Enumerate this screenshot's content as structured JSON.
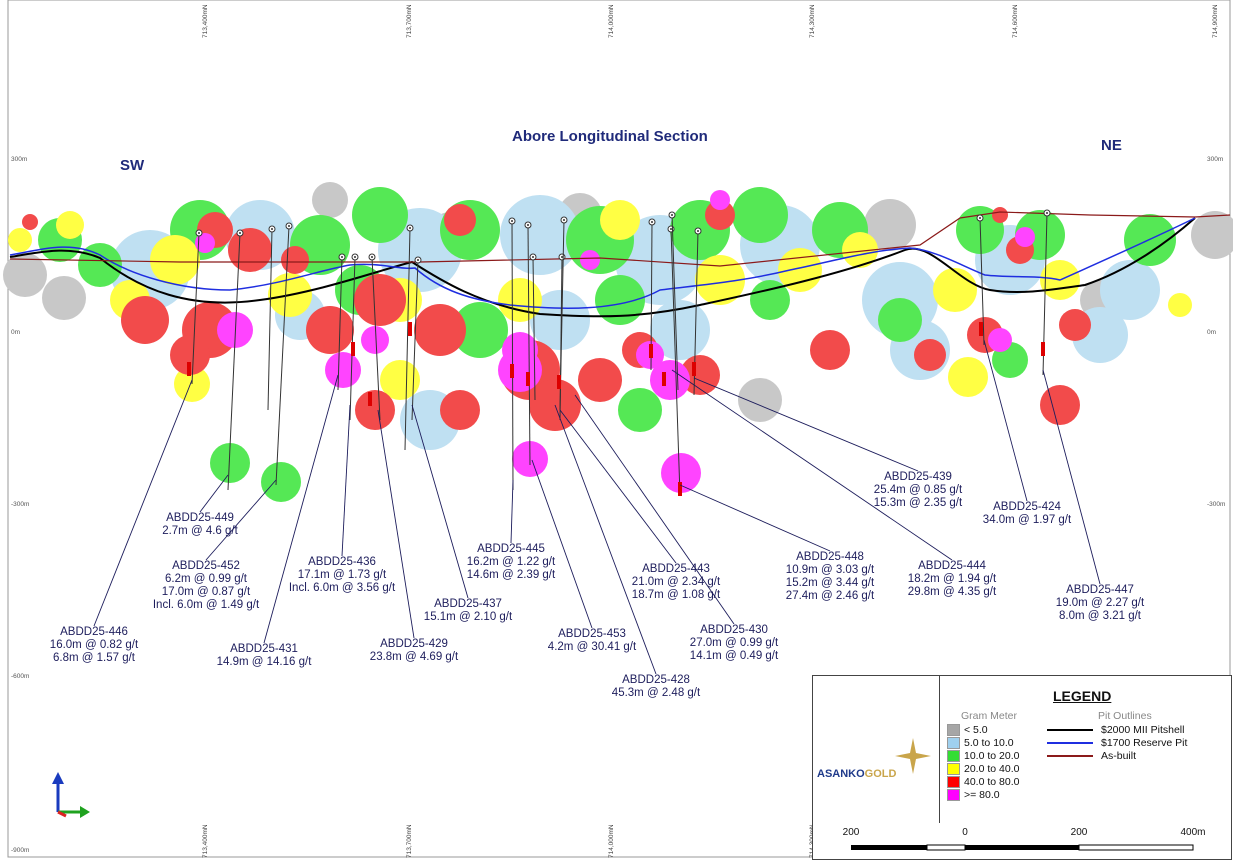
{
  "title": "Abore Longitudinal Section",
  "direction_labels": {
    "left": "SW",
    "right": "NE"
  },
  "easting_ticks": [
    "713,400mN",
    "713,700mN",
    "714,000mN",
    "714,300mN",
    "714,600mN",
    "714,900mN"
  ],
  "elevation_ticks": [
    "300m",
    "0m",
    "-300m",
    "-600m",
    "-900m"
  ],
  "drill_holes": [
    {
      "hole": "ABDD25-446",
      "lines": [
        "16.0m @ 0.82 g/t",
        "6.8m @ 1.57 g/t"
      ]
    },
    {
      "hole": "ABDD25-449",
      "lines": [
        "2.7m @ 4.6 g/t"
      ]
    },
    {
      "hole": "ABDD25-452",
      "lines": [
        "6.2m @ 0.99 g/t",
        "17.0m @ 0.87 g/t",
        "Incl. 6.0m @ 1.49 g/t"
      ]
    },
    {
      "hole": "ABDD25-431",
      "lines": [
        "14.9m @ 14.16 g/t"
      ]
    },
    {
      "hole": "ABDD25-436",
      "lines": [
        "17.1m @ 1.73 g/t",
        "Incl. 6.0m @ 3.56 g/t"
      ]
    },
    {
      "hole": "ABDD25-429",
      "lines": [
        "23.8m @ 4.69 g/t"
      ]
    },
    {
      "hole": "ABDD25-437",
      "lines": [
        "15.1m @ 2.10 g/t"
      ]
    },
    {
      "hole": "ABDD25-445",
      "lines": [
        "16.2m @ 1.22 g/t",
        "14.6m @ 2.39 g/t"
      ]
    },
    {
      "hole": "ABDD25-453",
      "lines": [
        "4.2m @ 30.41 g/t"
      ]
    },
    {
      "hole": "ABDD25-428",
      "lines": [
        "45.3m @ 2.48 g/t"
      ]
    },
    {
      "hole": "ABDD25-443",
      "lines": [
        "21.0m @ 2.34 g/t",
        "18.7m @ 1.08 g/t"
      ]
    },
    {
      "hole": "ABDD25-430",
      "lines": [
        "27.0m @ 0.99 g/t",
        "14.1m @ 0.49 g/t"
      ]
    },
    {
      "hole": "ABDD25-448",
      "lines": [
        "10.9m @ 3.03 g/t",
        "15.2m @ 3.44 g/t",
        "27.4m @ 2.46 g/t"
      ]
    },
    {
      "hole": "ABDD25-439",
      "lines": [
        "25.4m @ 0.85 g/t",
        "15.3m @ 2.35 g/t"
      ]
    },
    {
      "hole": "ABDD25-444",
      "lines": [
        "18.2m @ 1.94 g/t",
        "29.8m @ 4.35 g/t"
      ]
    },
    {
      "hole": "ABDD25-424",
      "lines": [
        "34.0m @ 1.97 g/t"
      ]
    },
    {
      "hole": "ABDD25-447",
      "lines": [
        "19.0m @ 2.27 g/t",
        "8.0m @ 3.21 g/t"
      ]
    }
  ],
  "legend": {
    "title": "LEGEND",
    "gram_meter_heading": "Gram Meter",
    "gram_meter_classes": [
      {
        "label": "< 5.0",
        "color": "#a6a6a6"
      },
      {
        "label": "5.0 to 10.0",
        "color": "#9fd0ee"
      },
      {
        "label": "10.0 to 20.0",
        "color": "#33dd33"
      },
      {
        "label": "20.0 to 40.0",
        "color": "#ffff00"
      },
      {
        "label": "40.0 to 80.0",
        "color": "#ff0000"
      },
      {
        "label": ">= 80.0",
        "color": "#ff00ff"
      }
    ],
    "pit_outlines_heading": "Pit Outlines",
    "pit_outlines": [
      {
        "label": "$2000 MII Pitshell",
        "color": "#000000"
      },
      {
        "label": "$1700 Reserve Pit",
        "color": "#1f2ee0"
      },
      {
        "label": "As-built",
        "color": "#8b1a1a"
      }
    ]
  },
  "logo": {
    "main": "ASANKO",
    "sub": "GOLD"
  },
  "scale_bar": {
    "labels": [
      "200",
      "0",
      "200",
      "400m"
    ]
  },
  "blob_colors": {
    "grey": "#c8c8c8",
    "blue": "#bfe0f2",
    "green": "#55e855",
    "yellow": "#ffff44",
    "red": "#f24b4b",
    "magenta": "#ff44ff"
  }
}
